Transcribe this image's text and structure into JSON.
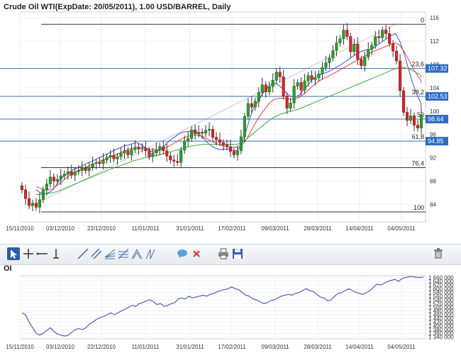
{
  "title": "Crude Oil WTI(ExpDate: 20/05/2011), 1.00 USD/BARREL, Daily",
  "chart_data": [
    {
      "type": "candlestick",
      "title": "Crude Oil WTI(ExpDate: 20/05/2011), 1.00 USD/BARREL, Daily",
      "ylim": [
        81,
        117
      ],
      "y_ticks": [
        84,
        88,
        92,
        96,
        100,
        104,
        108,
        112,
        116
      ],
      "x_tick_labels": [
        "15/11/2010",
        "03/12/2010",
        "22/12/2010",
        "11/01/2011",
        "31/01/2011",
        "17/02/2011",
        "09/03/2011",
        "28/03/2011",
        "14/04/2011",
        "04/05/2011"
      ],
      "fibonacci_levels": [
        {
          "label": "0",
          "price": 114.9
        },
        {
          "label": "23,6",
          "price": 107.32
        },
        {
          "label": "38,2",
          "price": 102.53
        },
        {
          "label": "50",
          "price": 98.64
        },
        {
          "label": "61,8",
          "price": 94.85
        },
        {
          "label": "76,4",
          "price": 90.3
        },
        {
          "label": "100",
          "price": 82.7
        }
      ],
      "price_badges": [
        "107.32",
        "102.53",
        "98.64",
        "94.85"
      ],
      "series": [
        {
          "kind": "ma",
          "color": "#4a4ac8",
          "values": [
            86.5,
            86,
            85.8,
            86,
            86.5,
            87.5,
            88.5,
            89,
            89.5,
            90,
            90.3,
            90.6,
            91,
            91.3,
            91.6,
            92,
            92.3,
            92.6,
            93,
            93.4,
            93.7,
            94,
            94.2,
            94.4,
            94.6,
            94.3,
            93.8,
            93.3,
            93,
            93.1,
            93.5,
            94.3,
            95,
            95.5,
            96,
            96.4,
            96.5,
            96.5,
            96.5,
            96,
            95.4,
            94.6,
            94,
            93.6,
            93.4,
            93.5,
            93.5,
            93.3,
            93.2,
            94,
            96,
            98.5,
            100.5,
            101.5,
            102.8,
            103.8,
            104.5,
            104.8,
            104.5,
            103.8,
            103,
            102.5,
            102.4,
            102.8,
            103.6,
            104.5,
            105.4,
            106,
            106.3,
            106.5,
            106.8,
            107.2,
            107.6,
            108,
            108.5,
            109,
            109.5,
            110,
            110.3,
            110.5,
            110.6,
            111,
            111.5,
            112,
            112.5,
            113,
            113.3,
            112,
            110,
            107.5,
            105,
            103,
            101.5,
            100.5
          ]
        },
        {
          "kind": "ma",
          "color": "#d84040",
          "values": [
            87,
            86.8,
            86.5,
            86.5,
            86.7,
            87.2,
            87.8,
            88.4,
            89,
            89.4,
            89.8,
            90.1,
            90.4,
            90.7,
            91,
            91.3,
            91.6,
            91.9,
            92.2,
            92.5,
            92.8,
            93.1,
            93.4,
            93.6,
            93.8,
            93.8,
            93.7,
            93.5,
            93.4,
            93.3,
            93.4,
            93.7,
            94.1,
            94.5,
            94.9,
            95.3,
            95.6,
            95.8,
            95.9,
            95.8,
            95.6,
            95.2,
            94.8,
            94.5,
            94.2,
            94,
            93.9,
            93.8,
            93.8,
            94,
            94.8,
            96,
            97.4,
            98.6,
            99.7,
            100.6,
            101.5,
            102,
            102.2,
            102.2,
            102.1,
            102,
            102.1,
            102.4,
            102.9,
            103.5,
            104.2,
            104.8,
            105.3,
            105.7,
            106,
            106.4,
            106.8,
            107.2,
            107.6,
            108,
            108.4,
            108.8,
            109.2,
            109.6,
            110,
            110.3,
            110.6,
            110.9,
            111.2,
            111.5,
            111.7,
            111.3,
            110.3,
            109,
            107.6,
            106.4,
            105.4,
            104.8
          ]
        },
        {
          "kind": "ma",
          "color": "#3aa83a",
          "values": [
            85.7,
            85.7,
            85.8,
            85.9,
            86,
            86.2,
            86.5,
            86.8,
            87.1,
            87.4,
            87.7,
            88,
            88.3,
            88.6,
            88.9,
            89.2,
            89.5,
            89.8,
            90.1,
            90.4,
            90.6,
            90.9,
            91.1,
            91.4,
            91.6,
            91.8,
            92,
            92.1,
            92.3,
            92.4,
            92.6,
            92.8,
            93,
            93.2,
            93.4,
            93.6,
            93.8,
            94,
            94.1,
            94.2,
            94.3,
            94.3,
            94.3,
            94.3,
            94.3,
            94.3,
            94.3,
            94.3,
            94.3,
            94.5,
            95,
            95.6,
            96.2,
            96.8,
            97.4,
            98,
            98.5,
            99,
            99.3,
            99.6,
            99.8,
            100,
            100.2,
            100.4,
            100.7,
            101,
            101.3,
            101.6,
            101.9,
            102.2,
            102.5,
            102.8,
            103.1,
            103.4,
            103.7,
            104,
            104.3,
            104.6,
            104.9,
            105.2,
            105.5,
            105.8,
            106.1,
            106.4,
            106.7,
            107,
            107.3,
            107.5,
            107.5,
            107.3,
            107,
            106.6,
            106.2,
            105.8
          ]
        }
      ],
      "close": [
        86.5,
        85,
        83.8,
        84.2,
        83.5,
        84.8,
        86.5,
        87.5,
        88.7,
        88,
        88.3,
        88.9,
        89.2,
        89.6,
        89,
        89.6,
        89.8,
        90.2,
        89.8,
        90.4,
        91,
        91.2,
        91,
        91.6,
        92.1,
        92.4,
        91.8,
        92.2,
        92.8,
        93.2,
        92.5,
        93.4,
        93.8,
        93.5,
        93.6,
        93.2,
        92.2,
        92.8,
        93.4,
        93.9,
        93.2,
        92.3,
        91.6,
        91.4,
        91.2,
        93.3,
        94.9,
        95.3,
        96.8,
        96.1,
        96.4,
        96.2,
        96.7,
        96.9,
        95.5,
        95.1,
        94.6,
        94.2,
        93.9,
        93.1,
        92.5,
        93.2,
        95.6,
        99.1,
        101.3,
        100.7,
        101.7,
        103.2,
        104.5,
        103.3,
        104.2,
        105.3,
        106.7,
        105.9,
        102.6,
        100.5,
        101.4,
        104.3,
        104.9,
        103.6,
        105.2,
        106.1,
        105.4,
        105.7,
        106.4,
        107.5,
        108.3,
        109.1,
        110.4,
        111.7,
        112.4,
        113.9,
        112.8,
        110.2,
        111.5,
        108.9,
        107.8,
        109.3,
        110.6,
        111.3,
        112.8,
        112.6,
        113.9,
        113.3,
        111.6,
        110.3,
        108.6,
        103.5,
        99.8,
        98.4,
        99.2,
        97.6,
        97.1,
        99.4
      ],
      "open": [
        87.2,
        86.5,
        85,
        83.8,
        84.2,
        83.5,
        84.8,
        86.5,
        87.5,
        88.7,
        88,
        88.3,
        88.9,
        89.2,
        89.6,
        89,
        89.6,
        89.8,
        90.2,
        89.8,
        90.4,
        91,
        91.2,
        91,
        91.6,
        92.1,
        92.4,
        91.8,
        92.2,
        92.8,
        93.2,
        92.5,
        93.4,
        93.8,
        93.5,
        93.6,
        93.2,
        92.2,
        92.8,
        93.4,
        93.9,
        93.2,
        92.3,
        91.6,
        91.4,
        91.2,
        93.3,
        94.9,
        95.3,
        96.8,
        96.1,
        96.4,
        96.2,
        96.7,
        96.9,
        95.5,
        95.1,
        94.6,
        94.2,
        93.9,
        93.1,
        92.5,
        93.2,
        95.6,
        99.1,
        101.3,
        100.7,
        101.7,
        103.2,
        104.5,
        103.3,
        104.2,
        105.3,
        106.7,
        105.9,
        102.6,
        100.5,
        101.4,
        104.3,
        104.9,
        103.6,
        105.2,
        106.1,
        105.4,
        105.7,
        106.4,
        107.5,
        108.3,
        109.1,
        110.4,
        111.7,
        112.4,
        113.9,
        112.8,
        110.2,
        111.5,
        108.9,
        107.8,
        109.3,
        110.6,
        111.3,
        112.8,
        112.6,
        113.9,
        113.3,
        111.6,
        110.3,
        108.6,
        103.5,
        99.8,
        98.4,
        99.2,
        97.6,
        97.1
      ]
    },
    {
      "type": "line",
      "title": "OI",
      "ylim": [
        1330000,
        1670000
      ],
      "y_tick_labels": [
        "1 660 000",
        "1 640 000",
        "1 620 000",
        "1 600 000",
        "1 580 000",
        "1 560 000",
        "1 540 000",
        "1 520 000",
        "1 500 000",
        "1 480 000",
        "1 460 000",
        "1 440 000",
        "1 420 000",
        "1 400 000",
        "1 380 000",
        "1 360 000",
        "1 340 000"
      ],
      "y_tick_values": [
        1660000,
        1640000,
        1620000,
        1600000,
        1580000,
        1560000,
        1540000,
        1520000,
        1500000,
        1480000,
        1460000,
        1440000,
        1420000,
        1400000,
        1380000,
        1360000,
        1340000
      ],
      "x_tick_labels": [
        "15/11/2010",
        "03/12/2010",
        "22/12/2010",
        "11/01/2011",
        "31/01/2011",
        "17/02/2011",
        "09/03/2011",
        "28/03/2011",
        "14/04/2011",
        "04/05/2011"
      ],
      "color": "#5a5ab8",
      "values": [
        1470000,
        1460000,
        1420000,
        1390000,
        1360000,
        1350000,
        1360000,
        1375000,
        1390000,
        1370000,
        1355000,
        1350000,
        1345000,
        1350000,
        1365000,
        1380000,
        1385000,
        1380000,
        1390000,
        1410000,
        1420000,
        1435000,
        1445000,
        1450000,
        1460000,
        1470000,
        1460000,
        1470000,
        1480000,
        1490000,
        1500000,
        1510000,
        1505000,
        1520000,
        1525000,
        1535000,
        1540000,
        1530000,
        1515000,
        1520000,
        1505000,
        1510000,
        1520000,
        1525000,
        1545000,
        1550000,
        1545000,
        1560000,
        1550000,
        1555000,
        1560000,
        1565000,
        1560000,
        1570000,
        1575000,
        1585000,
        1590000,
        1595000,
        1600000,
        1610000,
        1600000,
        1595000,
        1580000,
        1565000,
        1560000,
        1545000,
        1540000,
        1530000,
        1520000,
        1525000,
        1535000,
        1540000,
        1550000,
        1560000,
        1565000,
        1570000,
        1565000,
        1575000,
        1580000,
        1590000,
        1600000,
        1590000,
        1585000,
        1570000,
        1555000,
        1550000,
        1535000,
        1540000,
        1560000,
        1575000,
        1580000,
        1590000,
        1600000,
        1590000,
        1580000,
        1575000,
        1570000,
        1580000,
        1590000,
        1610000,
        1625000,
        1620000,
        1630000,
        1640000,
        1645000,
        1650000,
        1640000,
        1655000,
        1660000,
        1665000,
        1665000,
        1662000,
        1660000,
        1663000
      ]
    }
  ],
  "toolbar": {
    "buttons": [
      "cursor",
      "crosshair",
      "horizontal-line",
      "vertical-line",
      "trend-line",
      "parallel-channel",
      "fibonacci-fan",
      "fibonacci-retracement",
      "fibonacci-arcs",
      "comment",
      "delete",
      "print",
      "save",
      "trash"
    ]
  },
  "oi_label": "OI"
}
